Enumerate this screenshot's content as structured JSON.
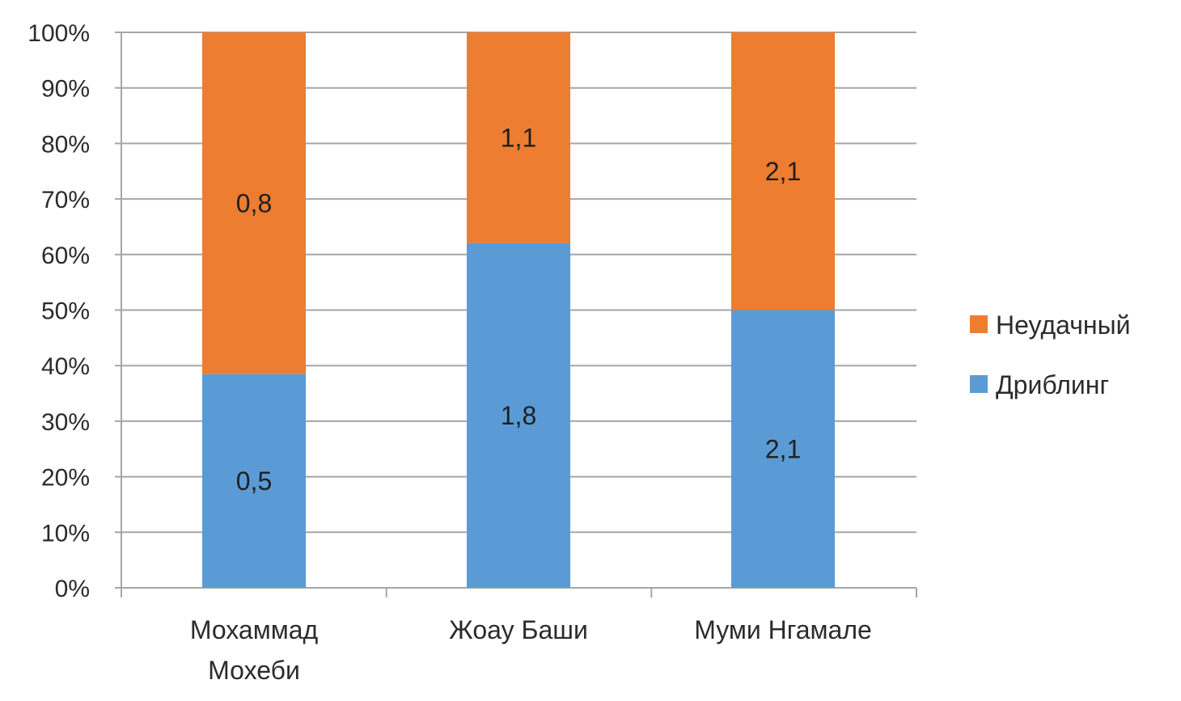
{
  "chart_data": {
    "type": "bar",
    "stacked": true,
    "normalized": true,
    "categories": [
      [
        "Мохаммад",
        "Мохеби"
      ],
      [
        "Жоау Баши"
      ],
      [
        "Муми Нгамале"
      ]
    ],
    "series": [
      {
        "name": "Дриблинг",
        "color": "#5b9bd5",
        "values": [
          0.5,
          1.8,
          2.1
        ],
        "labels": [
          "0,5",
          "1,8",
          "2,1"
        ]
      },
      {
        "name": "Неудачный",
        "color": "#ed7d31",
        "values": [
          0.8,
          1.1,
          2.1
        ],
        "labels": [
          "0,8",
          "1,1",
          "2,1"
        ]
      }
    ],
    "yticks": [
      "0%",
      "10%",
      "20%",
      "30%",
      "40%",
      "50%",
      "60%",
      "70%",
      "80%",
      "90%",
      "100%"
    ],
    "ylim": [
      0,
      100
    ],
    "ylabel_format": "percent",
    "grid": true,
    "gridColor": "#a6a6a6",
    "legend": {
      "position": "right",
      "order": [
        "Неудачный",
        "Дриблинг"
      ]
    }
  }
}
